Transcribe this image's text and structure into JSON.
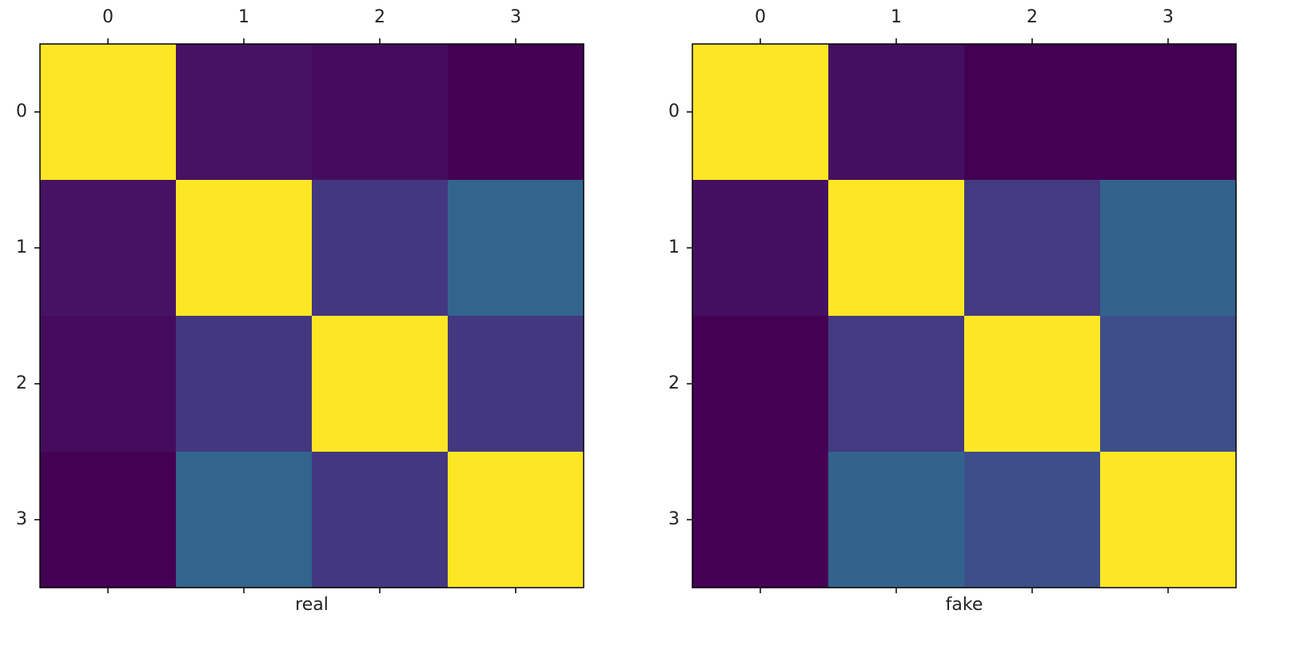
{
  "chart_data": [
    {
      "type": "heatmap",
      "xlabel": "real",
      "colormap": "viridis",
      "xlim": [
        -0.5,
        3.5
      ],
      "ylim": [
        3.5,
        -0.5
      ],
      "xticks": [
        0,
        1,
        2,
        3
      ],
      "yticks": [
        0,
        1,
        2,
        3
      ],
      "values": [
        [
          1,
          0.06,
          0.04,
          0.01
        ],
        [
          0.06,
          1,
          0.17,
          0.33
        ],
        [
          0.04,
          0.17,
          1,
          0.17
        ],
        [
          0.01,
          0.33,
          0.17,
          1
        ]
      ]
    },
    {
      "type": "heatmap",
      "xlabel": "fake",
      "colormap": "viridis",
      "xlim": [
        -0.5,
        3.5
      ],
      "ylim": [
        3.5,
        -0.5
      ],
      "xticks": [
        0,
        1,
        2,
        3
      ],
      "yticks": [
        0,
        1,
        2,
        3
      ],
      "values": [
        [
          1,
          0.05,
          0.01,
          0.01
        ],
        [
          0.05,
          1,
          0.18,
          0.32
        ],
        [
          0.01,
          0.18,
          1,
          0.25
        ],
        [
          0.01,
          0.32,
          0.25,
          1
        ]
      ]
    }
  ]
}
